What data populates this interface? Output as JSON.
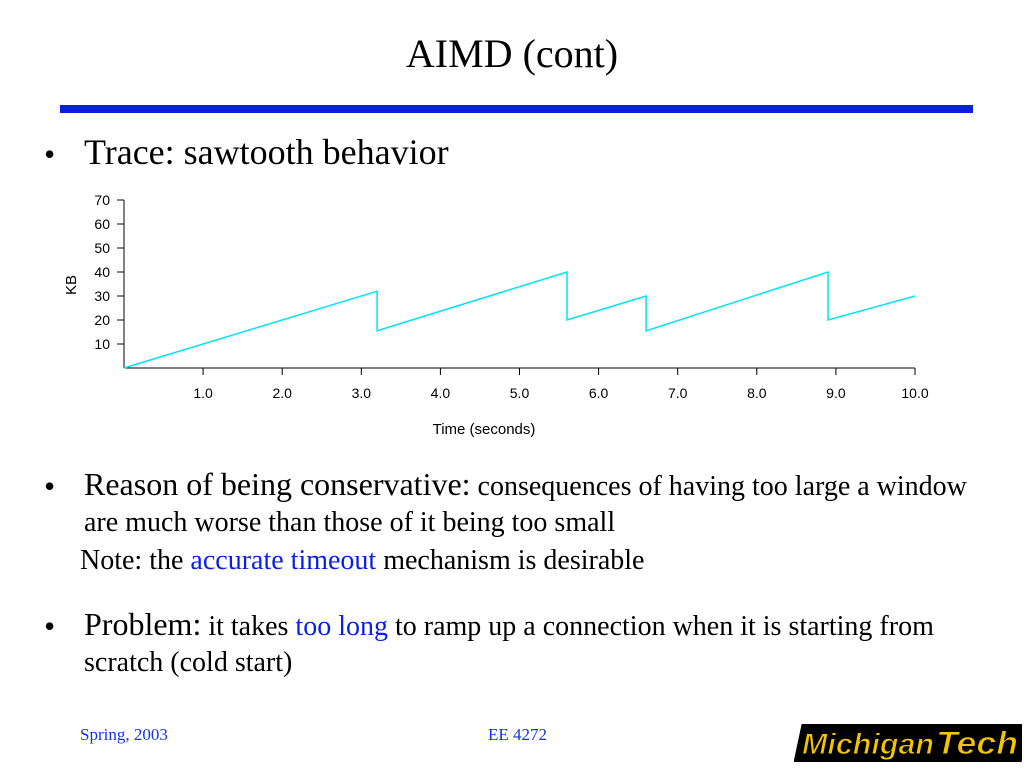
{
  "slide": {
    "title": "AIMD (cont)",
    "bullet_glyph": "•",
    "bullet1": {
      "text": "Trace: sawtooth behavior"
    },
    "bullet2": {
      "lead": "Reason of being conservative:",
      "text": " consequences of having too large a window are much worse than those of it being too small"
    },
    "note": {
      "prefix": "Note: the ",
      "highlight": "accurate timeout",
      "suffix": " mechanism is desirable"
    },
    "bullet3": {
      "lead": "Problem:",
      "part1": " it takes ",
      "highlight": "too long",
      "part2": " to ramp up a connection when it is starting from scratch (cold start)"
    }
  },
  "footer": {
    "left": "Spring, 2003",
    "center": "EE 4272"
  },
  "logo": {
    "text1": "Michigan",
    "text2": "Tech"
  },
  "colors": {
    "accent": "#0a1fe6",
    "line": "#00e5ee",
    "footer": "#1433e0",
    "logo_gold": "#f5c400"
  },
  "chart_data": {
    "type": "line",
    "xlabel": "Time (seconds)",
    "ylabel": "KB",
    "xlim": [
      0,
      10.0
    ],
    "ylim": [
      0,
      70
    ],
    "x_ticks": [
      {
        "value": 1,
        "label": "1.0"
      },
      {
        "value": 2,
        "label": "2.0"
      },
      {
        "value": 3,
        "label": "3.0"
      },
      {
        "value": 4,
        "label": "4.0"
      },
      {
        "value": 5,
        "label": "5.0"
      },
      {
        "value": 6,
        "label": "6.0"
      },
      {
        "value": 7,
        "label": "7.0"
      },
      {
        "value": 8,
        "label": "8.0"
      },
      {
        "value": 9,
        "label": "9.0"
      },
      {
        "value": 10,
        "label": "10.0"
      }
    ],
    "y_ticks": [
      {
        "value": 10,
        "label": "10"
      },
      {
        "value": 20,
        "label": "20"
      },
      {
        "value": 30,
        "label": "30"
      },
      {
        "value": 40,
        "label": "40"
      },
      {
        "value": 50,
        "label": "50"
      },
      {
        "value": 60,
        "label": "60"
      },
      {
        "value": 70,
        "label": "70"
      }
    ],
    "series": [
      {
        "points": [
          [
            0,
            0
          ],
          [
            3.2,
            32
          ],
          [
            3.2,
            15.5
          ],
          [
            5.6,
            40
          ],
          [
            5.6,
            20
          ],
          [
            6.6,
            30
          ],
          [
            6.6,
            15.5
          ],
          [
            8.9,
            40
          ],
          [
            8.9,
            20
          ],
          [
            10.0,
            30
          ]
        ]
      }
    ]
  }
}
